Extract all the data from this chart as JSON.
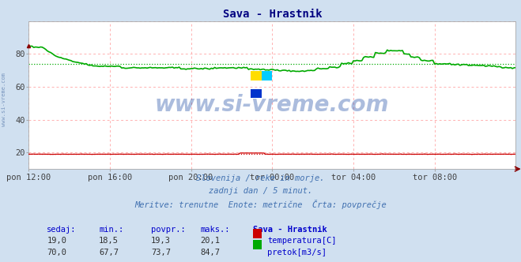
{
  "title": "Sava - Hrastnik",
  "title_color": "#000080",
  "bg_color": "#d0e0f0",
  "plot_bg_color": "#ffffff",
  "grid_color": "#ffb0b0",
  "x_tick_labels": [
    "pon 12:00",
    "pon 16:00",
    "pon 20:00",
    "tor 00:00",
    "tor 04:00",
    "tor 08:00"
  ],
  "x_tick_positions": [
    0.0,
    0.1667,
    0.3333,
    0.5,
    0.6667,
    0.8333
  ],
  "ylim": [
    10,
    100
  ],
  "yticks": [
    20,
    40,
    60,
    80
  ],
  "watermark_text": "www.si-vreme.com",
  "watermark_color": "#1040a0",
  "watermark_alpha": 0.35,
  "subtitle_lines": [
    "Slovenija / reke in morje.",
    "zadnji dan / 5 minut.",
    "Meritve: trenutne  Enote: metrične  Črta: povprečje"
  ],
  "subtitle_color": "#4070b0",
  "footer_color": "#0000cc",
  "temp_color": "#cc0000",
  "flow_color": "#00aa00",
  "temp_avg_value": 19.3,
  "flow_avg_value": 73.7,
  "temp_sedaj": 19.0,
  "temp_min": 18.5,
  "temp_povpr": 19.3,
  "temp_maks": 20.1,
  "flow_sedaj": 70.0,
  "flow_min": 67.7,
  "flow_povpr": 73.7,
  "flow_maks": 84.7,
  "left_label": "www.si-vreme.com",
  "n_points": 289
}
